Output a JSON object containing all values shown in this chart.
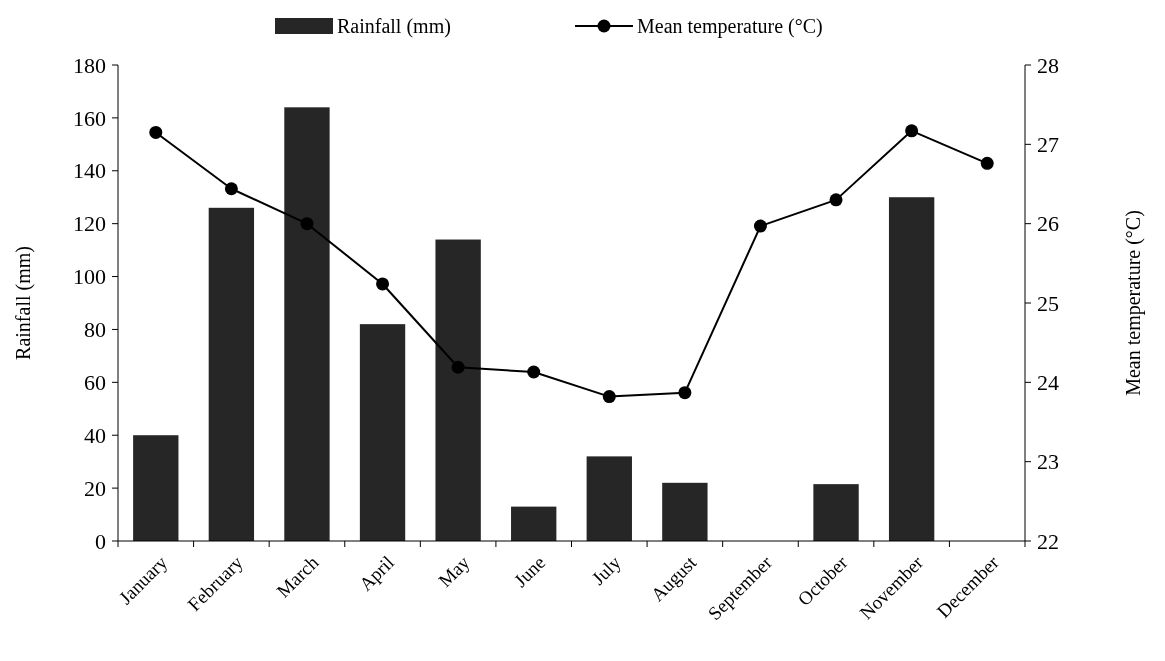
{
  "chart_data": {
    "type": "bar",
    "categories": [
      "January",
      "February",
      "March",
      "April",
      "May",
      "June",
      "July",
      "August",
      "September",
      "October",
      "November",
      "December"
    ],
    "ylabel": "Rainfall (mm)",
    "y2label": "Mean temperature (°C)",
    "ylim": [
      0,
      180
    ],
    "yticks": [
      0,
      20,
      40,
      60,
      80,
      100,
      120,
      140,
      160,
      180
    ],
    "y2lim": [
      22,
      28
    ],
    "y2ticks": [
      22,
      23,
      24,
      25,
      26,
      27,
      28
    ],
    "series": [
      {
        "name": "Rainfall (mm)",
        "color": "#262626",
        "values": [
          40,
          126,
          164,
          82,
          114,
          13,
          32,
          22,
          0,
          21.5,
          130,
          0
        ]
      },
      {
        "name": "Mean temperature (°C)",
        "type": "line",
        "axis": "y2",
        "color": "#000000",
        "marker": "circle",
        "values": [
          27.15,
          26.44,
          26.0,
          25.24,
          24.19,
          24.13,
          23.82,
          23.87,
          25.97,
          26.3,
          27.17,
          26.76
        ]
      }
    ],
    "legend": "top",
    "grid": false
  }
}
